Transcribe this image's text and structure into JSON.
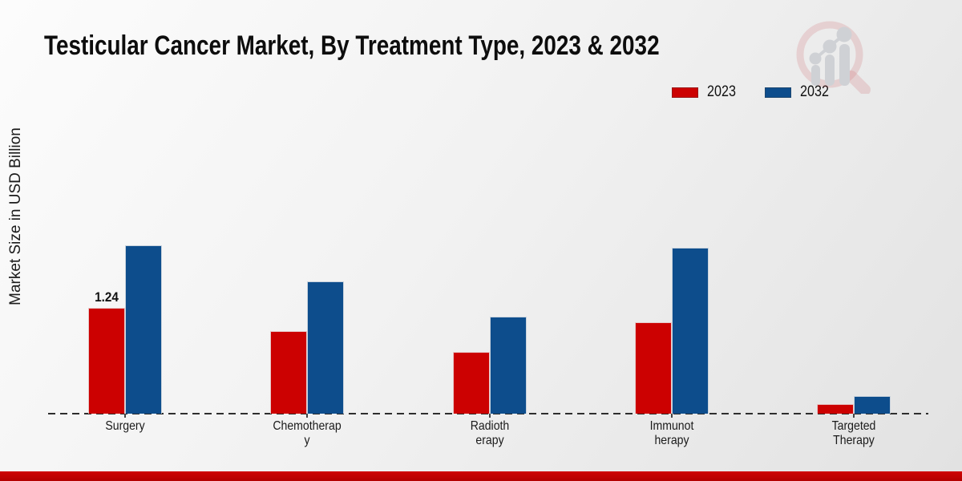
{
  "page": {
    "title": "Testicular Cancer Market, By Treatment Type, 2023 & 2032"
  },
  "header": {
    "logo_icon": "magnifier-growth-chart-icon"
  },
  "colors": {
    "accent_red": "#cc0101",
    "accent_blue": "#0d4d8c",
    "footer_bar": "#c40404",
    "background_top": "#fcfcfc",
    "background_bottom": "#e2e2e2",
    "logo_ring": "rgba(195,70,75,0.22)",
    "logo_gray": "#c6c9ce"
  },
  "chart_data": {
    "type": "bar",
    "title": "Testicular Cancer Market, By Treatment Type, 2023 & 2032",
    "xlabel": "",
    "ylabel": "Market Size in USD Billion",
    "ylim": [
      0,
      2.2
    ],
    "grid": false,
    "legend_position": "top-right",
    "baseline_style": "dashed",
    "categories": [
      "Surgery",
      "Chemotherapy",
      "Radiotherapy",
      "Immunotherapy",
      "Targeted Therapy"
    ],
    "category_lines": [
      [
        "Surgery"
      ],
      [
        "Chemotherap",
        "y"
      ],
      [
        "Radioth",
        "erapy"
      ],
      [
        "Immunot",
        "herapy"
      ],
      [
        "Targeted",
        "Therapy"
      ]
    ],
    "series": [
      {
        "name": "2023",
        "color": "#cc0101",
        "values": [
          1.24,
          0.97,
          0.72,
          1.07,
          0.11
        ]
      },
      {
        "name": "2032",
        "color": "#0d4d8c",
        "values": [
          1.97,
          1.55,
          1.14,
          1.94,
          0.21
        ]
      }
    ],
    "bar_labels": [
      {
        "series": "2023",
        "category": "Surgery",
        "text": "1.24"
      }
    ]
  }
}
